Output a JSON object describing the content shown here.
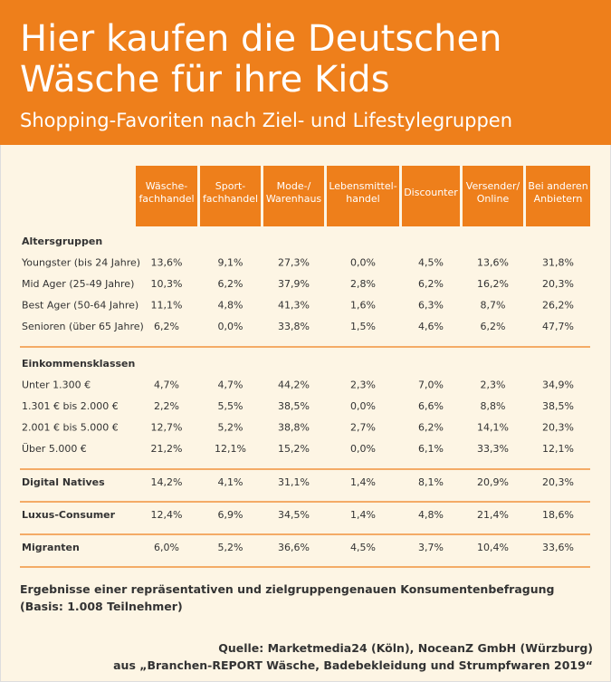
{
  "header": {
    "title": [
      "Hier kaufen die Deutschen",
      "Wäsche für ihre Kids"
    ],
    "subtitle": "Shopping-Favoriten nach Ziel- und Lifestylegruppen"
  },
  "table": {
    "columns": [
      [
        "Wäsche-",
        "fachhandel"
      ],
      [
        "Sport-",
        "fachhandel"
      ],
      [
        "Mode-/",
        "Warenhaus"
      ],
      [
        "Lebensmittel-",
        "handel"
      ],
      [
        "Discounter"
      ],
      [
        "Versender/",
        "Online"
      ],
      [
        "Bei anderen",
        "Anbietern"
      ]
    ],
    "sections": [
      {
        "title": "Altersgruppen",
        "rows": [
          {
            "label": "Youngster (bis 24 Jahre)",
            "cells": [
              "13,6%",
              "9,1%",
              "27,3%",
              "0,0%",
              "4,5%",
              "13,6%",
              "31,8%"
            ]
          },
          {
            "label": "Mid Ager (25-49 Jahre)",
            "cells": [
              "10,3%",
              "6,2%",
              "37,9%",
              "2,8%",
              "6,2%",
              "16,2%",
              "20,3%"
            ]
          },
          {
            "label": "Best Ager (50-64 Jahre)",
            "cells": [
              "11,1%",
              "4,8%",
              "41,3%",
              "1,6%",
              "6,3%",
              "8,7%",
              "26,2%"
            ]
          },
          {
            "label": "Senioren (über 65 Jahre)",
            "cells": [
              "6,2%",
              "0,0%",
              "33,8%",
              "1,5%",
              "4,6%",
              "6,2%",
              "47,7%"
            ]
          }
        ]
      },
      {
        "title": "Einkommensklassen",
        "rows": [
          {
            "label": "Unter 1.300 €",
            "cells": [
              "4,7%",
              "4,7%",
              "44,2%",
              "2,3%",
              "7,0%",
              "2,3%",
              "34,9%"
            ]
          },
          {
            "label": "1.301 € bis 2.000 €",
            "cells": [
              "2,2%",
              "5,5%",
              "38,5%",
              "0,0%",
              "6,6%",
              "8,8%",
              "38,5%"
            ]
          },
          {
            "label": "2.001 € bis 5.000 €",
            "cells": [
              "12,7%",
              "5,2%",
              "38,8%",
              "2,7%",
              "6,2%",
              "14,1%",
              "20,3%"
            ]
          },
          {
            "label": "Über 5.000 €",
            "cells": [
              "21,2%",
              "12,1%",
              "15,2%",
              "0,0%",
              "6,1%",
              "33,3%",
              "12,1%"
            ]
          }
        ]
      },
      {
        "rows": [
          {
            "label": "Digital Natives",
            "cells": [
              "14,2%",
              "4,1%",
              "31,1%",
              "1,4%",
              "8,1%",
              "20,9%",
              "20,3%"
            ]
          }
        ]
      },
      {
        "rows": [
          {
            "label": "Luxus-Consumer",
            "cells": [
              "12,4%",
              "6,9%",
              "34,5%",
              "1,4%",
              "4,8%",
              "21,4%",
              "18,6%"
            ]
          }
        ]
      },
      {
        "rows": [
          {
            "label": "Migranten",
            "cells": [
              "6,0%",
              "5,2%",
              "36,6%",
              "4,5%",
              "3,7%",
              "10,4%",
              "33,6%"
            ]
          }
        ]
      }
    ]
  },
  "footer": {
    "note": [
      "Ergebnisse einer repräsentativen und zielgruppengenauen Konsumentenbefragung",
      "(Basis: 1.008 Teilnehmer)"
    ],
    "source": [
      "Quelle: Marketmedia24 (Köln), NoceanZ GmbH (Würzburg)",
      "aus „Branchen-REPORT Wäsche, Badebekleidung und Strumpfwaren 2019“"
    ]
  }
}
